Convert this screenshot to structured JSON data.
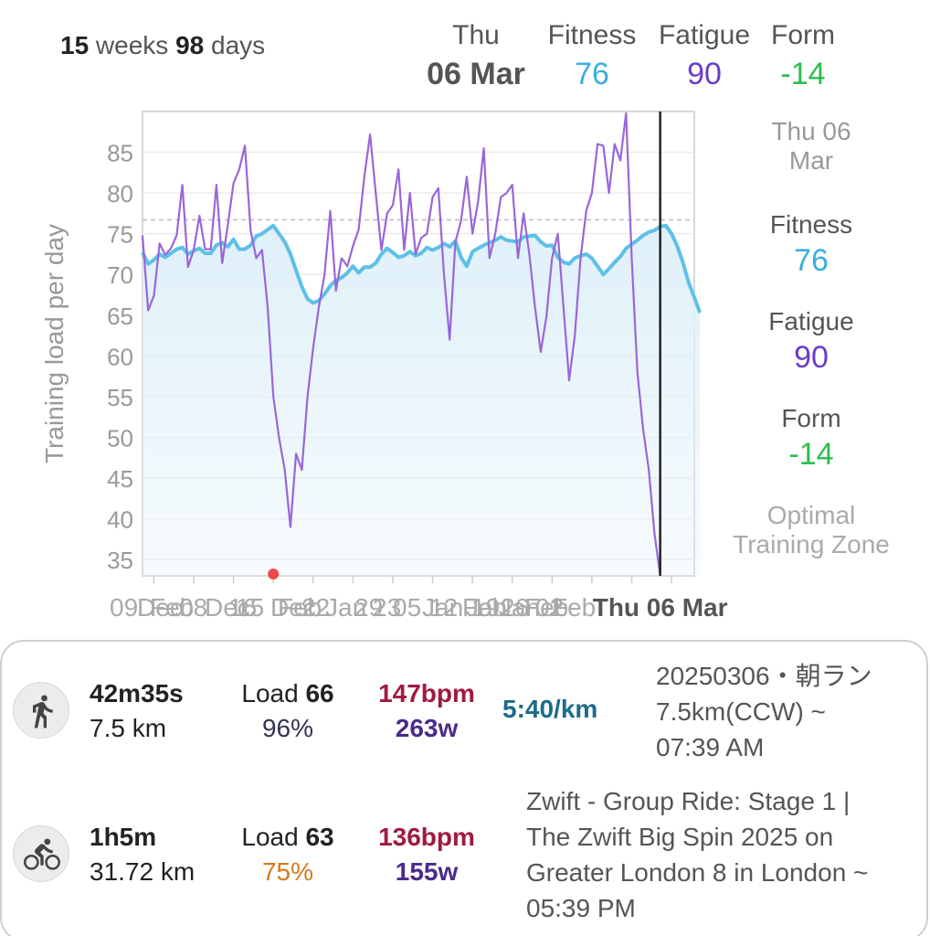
{
  "header": {
    "range_weeks_num": "15",
    "range_weeks_unit": " weeks ",
    "range_days_num": "98",
    "range_days_unit": " days",
    "date_label": "Thu",
    "date_value": "06 Mar",
    "fitness_label": "Fitness",
    "fitness_value": "76",
    "fatigue_label": "Fatigue",
    "fatigue_value": "90",
    "form_label": "Form",
    "form_value": "-14"
  },
  "colors": {
    "fitness": "#3aaee0",
    "fatigue": "#6a3cc8",
    "form": "#2ebd4e",
    "fitness_line": "#5ec0e8",
    "fatigue_line": "#9a66d8",
    "area_fill": "#dff0f9",
    "marker": "#f04848"
  },
  "side": {
    "date_line1": "Thu 06",
    "date_line2": "Mar",
    "fitness_label": "Fitness",
    "fitness_value": "76",
    "fatigue_label": "Fatigue",
    "fatigue_value": "90",
    "form_label": "Form",
    "form_value": "-14",
    "zone_line1": "Optimal",
    "zone_line2": "Training Zone"
  },
  "chart_data": {
    "type": "line",
    "ylabel": "Training load per day",
    "ylim": [
      33,
      90
    ],
    "yticks": [
      35,
      40,
      45,
      50,
      55,
      60,
      65,
      70,
      75,
      80,
      85
    ],
    "grid": true,
    "reference_line": 76.7,
    "x_tick_labels": [
      "Dec",
      "08",
      "Dec",
      "15",
      "Dec",
      "22",
      "Jan",
      "29",
      "05",
      "Jan",
      "12",
      "Jan",
      "19",
      "Jan",
      "26",
      "Feb",
      "02",
      "Feb",
      "09",
      "Feb",
      "16",
      "Feb",
      "23",
      "Feb"
    ],
    "x_days": 98,
    "cursor_label": "Thu 06 Mar",
    "cursor_day": 91,
    "marker_day": 23,
    "series": [
      {
        "name": "Fitness",
        "values": [
          72.7,
          71.3,
          71.8,
          72.5,
          72.1,
          72.6,
          73.1,
          73.3,
          72.5,
          72.9,
          73.2,
          72.6,
          72.6,
          73.6,
          73.9,
          73.4,
          74.3,
          73.1,
          73.1,
          73.6,
          74.7,
          75.0,
          75.5,
          76.0,
          75.0,
          74.0,
          72.5,
          70.5,
          68.5,
          67.0,
          66.5,
          66.8,
          67.6,
          68.6,
          69.3,
          69.6,
          70.2,
          71.0,
          70.2,
          70.9,
          70.9,
          71.4,
          72.5,
          73.2,
          72.7,
          72.1,
          72.3,
          72.8,
          72.3,
          72.6,
          73.3,
          73.0,
          73.3,
          73.8,
          73.4,
          74.1,
          72.1,
          71.0,
          72.8,
          73.2,
          73.6,
          73.9,
          74.2,
          74.6,
          74.2,
          74.1,
          74.0,
          74.6,
          74.7,
          74.8,
          74.0,
          73.5,
          73.6,
          72.1,
          71.5,
          71.3,
          72.0,
          72.3,
          72.5,
          72.0,
          71.0,
          70.0,
          70.7,
          71.5,
          72.2,
          73.2,
          73.7,
          74.2,
          74.8,
          75.2,
          75.4,
          75.9,
          76.0,
          75.0,
          73.5,
          71.5,
          69.0,
          67.2,
          65.3
        ]
      },
      {
        "name": "Fatigue",
        "values": [
          74.8,
          65.6,
          67.4,
          73.8,
          72.4,
          73.2,
          74.8,
          81.0,
          70.9,
          73.0,
          77.2,
          73.1,
          73.1,
          81.0,
          71.4,
          76.1,
          81.2,
          82.9,
          85.8,
          75.4,
          72.0,
          73.0,
          66.0,
          55.0,
          50.0,
          46.0,
          39.0,
          48.0,
          46.0,
          55.0,
          61.0,
          66.0,
          70.0,
          77.8,
          68.0,
          72.0,
          71.0,
          73.5,
          75.5,
          82.0,
          87.2,
          80.0,
          73.0,
          77.5,
          78.5,
          82.9,
          73.0,
          80.0,
          72.5,
          74.5,
          75.0,
          79.5,
          80.6,
          70.0,
          62.0,
          74.0,
          76.6,
          82.0,
          75.0,
          79.0,
          85.5,
          72.0,
          75.0,
          79.5,
          80.0,
          81.0,
          72.0,
          77.5,
          72.5,
          66.0,
          60.5,
          64.8,
          72.0,
          75.0,
          66.0,
          57.0,
          62.5,
          72.0,
          77.8,
          80.0,
          86.0,
          85.8,
          80.0,
          86.0,
          84.0,
          89.8,
          72.0,
          58.0,
          51.0,
          46.0,
          38.2,
          33.1
        ]
      }
    ]
  },
  "activities": [
    {
      "icon": "running-icon",
      "duration": "42m35s",
      "distance": "7.5 km",
      "load_label": "Load ",
      "load_value": "66",
      "percent": "96%",
      "percent_color": "#333355",
      "hr": "147bpm",
      "power": "263w",
      "pace": "5:40/km",
      "title_lines": [
        "20250306・朝ラン",
        "7.5km(CCW) ~",
        "07:39 AM"
      ]
    },
    {
      "icon": "cycling-icon",
      "duration": "1h5m",
      "distance": "31.72 km",
      "load_label": "Load ",
      "load_value": "63",
      "percent": "75%",
      "percent_color": "#d5791a",
      "hr": "136bpm",
      "power": "155w",
      "pace": "",
      "title_lines": [
        "Zwift - Group Ride: Stage 1 |",
        "The Zwift Big Spin 2025 on",
        "Greater London 8 in London ~",
        "05:39 PM"
      ]
    }
  ]
}
